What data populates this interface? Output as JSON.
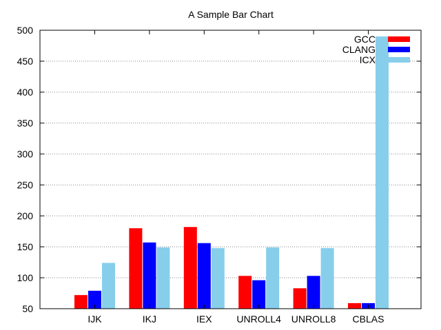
{
  "chart_data": {
    "type": "bar",
    "title": "A Sample Bar Chart",
    "xlabel": "",
    "ylabel": "",
    "ylim": [
      50,
      500
    ],
    "yticks": [
      50,
      100,
      150,
      200,
      250,
      300,
      350,
      400,
      450,
      500
    ],
    "grid": "horizontal dotted",
    "legend_position": "top-right",
    "categories": [
      "IJK",
      "IKJ",
      "IEX",
      "UNROLL4",
      "UNROLL8",
      "CBLAS"
    ],
    "series": [
      {
        "name": "GCC",
        "color": "#ff0000",
        "values": [
          72,
          180,
          182,
          103,
          83,
          59
        ]
      },
      {
        "name": "CLANG",
        "color": "#0000ff",
        "values": [
          79,
          157,
          156,
          96,
          103,
          59
        ]
      },
      {
        "name": "ICX",
        "color": "#87ceeb",
        "values": [
          124,
          149,
          148,
          149,
          148,
          490
        ]
      }
    ]
  }
}
